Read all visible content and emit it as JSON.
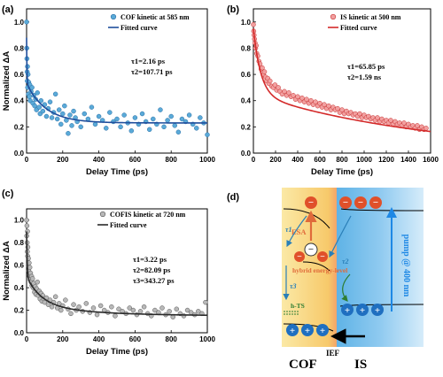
{
  "chart_data": [
    {
      "type": "scatter",
      "panel_label": "(a)",
      "xlabel": "Delay Time (ps)",
      "ylabel": "Normalized ΔA",
      "xlim": [
        0,
        1000
      ],
      "ylim": [
        0.0,
        1.1
      ],
      "xticks": [
        "0",
        "200",
        "400",
        "600",
        "800",
        "1000"
      ],
      "yticks": [
        "0.0",
        "0.2",
        "0.4",
        "0.6",
        "0.8",
        "1.0"
      ],
      "legend": {
        "placement": "top-right",
        "scatter_label": "COF kinetic at 585 nm",
        "fit_label": "Fitted curve"
      },
      "annotations": [
        "τ1=2.16 ps",
        "τ2=107.71 ps"
      ],
      "colors": {
        "points": "#5aaad8",
        "point_edge": "#2c6fa6",
        "fit": "#1f4e9c"
      },
      "fit": {
        "offset": 0.23,
        "components": [
          {
            "amp": 0.35,
            "tau": 2.16
          },
          {
            "amp": 0.3,
            "tau": 107.71
          }
        ]
      },
      "x": [
        0,
        1,
        2,
        3,
        4,
        5,
        6,
        8,
        10,
        12,
        15,
        18,
        20,
        25,
        30,
        35,
        40,
        45,
        50,
        55,
        60,
        70,
        75,
        80,
        90,
        100,
        110,
        120,
        130,
        140,
        150,
        160,
        170,
        180,
        190,
        200,
        210,
        220,
        230,
        240,
        250,
        260,
        270,
        280,
        300,
        320,
        340,
        360,
        380,
        400,
        420,
        440,
        460,
        480,
        500,
        520,
        540,
        560,
        580,
        600,
        620,
        640,
        660,
        680,
        700,
        720,
        740,
        760,
        780,
        800,
        820,
        840,
        860,
        880,
        900,
        920,
        940,
        960,
        980,
        1000
      ],
      "y": [
        1.0,
        0.8,
        0.72,
        0.62,
        0.55,
        0.66,
        0.5,
        0.6,
        0.45,
        0.54,
        0.43,
        0.52,
        0.4,
        0.47,
        0.5,
        0.38,
        0.44,
        0.36,
        0.41,
        0.33,
        0.46,
        0.35,
        0.3,
        0.4,
        0.32,
        0.37,
        0.28,
        0.34,
        0.39,
        0.27,
        0.31,
        0.45,
        0.26,
        0.33,
        0.22,
        0.3,
        0.36,
        0.25,
        0.15,
        0.29,
        0.21,
        0.32,
        0.27,
        0.24,
        0.2,
        0.3,
        0.26,
        0.35,
        0.22,
        0.28,
        0.25,
        0.19,
        0.31,
        0.24,
        0.26,
        0.2,
        0.29,
        0.23,
        0.17,
        0.27,
        0.22,
        0.3,
        0.24,
        0.18,
        0.26,
        0.22,
        0.33,
        0.2,
        0.25,
        0.28,
        0.21,
        0.16,
        0.26,
        0.24,
        0.29,
        0.22,
        0.19,
        0.27,
        0.23,
        0.14
      ]
    },
    {
      "type": "scatter",
      "panel_label": "(b)",
      "xlabel": "Delay Time (ps)",
      "ylabel": "",
      "xlim": [
        0,
        1600
      ],
      "ylim": [
        0.0,
        1.1
      ],
      "xticks": [
        "0",
        "200",
        "400",
        "600",
        "800",
        "1000",
        "1200",
        "1400",
        "1600"
      ],
      "yticks": [
        "0.0",
        "0.2",
        "0.4",
        "0.6",
        "0.8",
        "1.0"
      ],
      "legend": {
        "placement": "top-right",
        "scatter_label": "IS kinetic at 500 nm",
        "fit_label": "Fitted curve"
      },
      "annotations": [
        "τ1=65.85 ps",
        "τ2=1.59 ns"
      ],
      "colors": {
        "points": "#f2a0a0",
        "point_edge": "#c83232",
        "fit": "#d42a2a"
      },
      "fit": {
        "offset": 0.0,
        "components": [
          {
            "amp": 0.5,
            "tau": 65.85
          },
          {
            "amp": 0.45,
            "tau": 1590
          }
        ]
      },
      "x": [
        0,
        3,
        6,
        10,
        15,
        20,
        25,
        30,
        40,
        50,
        60,
        70,
        80,
        90,
        100,
        110,
        120,
        130,
        140,
        150,
        165,
        180,
        195,
        210,
        225,
        240,
        260,
        280,
        300,
        320,
        340,
        360,
        380,
        400,
        420,
        440,
        460,
        480,
        500,
        520,
        540,
        560,
        580,
        600,
        620,
        640,
        660,
        680,
        700,
        720,
        740,
        760,
        780,
        800,
        820,
        840,
        860,
        880,
        900,
        920,
        940,
        960,
        980,
        1000,
        1020,
        1040,
        1060,
        1080,
        1100,
        1120,
        1140,
        1160,
        1180,
        1200,
        1220,
        1240,
        1260,
        1280,
        1300,
        1320,
        1340,
        1360,
        1380,
        1400,
        1420,
        1440,
        1460,
        1480,
        1500,
        1520,
        1540,
        1560
      ],
      "y": [
        0.98,
        0.93,
        0.9,
        0.87,
        0.84,
        0.8,
        0.82,
        0.76,
        0.74,
        0.7,
        0.68,
        0.64,
        0.65,
        0.6,
        0.62,
        0.58,
        0.55,
        0.57,
        0.53,
        0.55,
        0.51,
        0.5,
        0.52,
        0.48,
        0.5,
        0.47,
        0.45,
        0.47,
        0.44,
        0.46,
        0.43,
        0.44,
        0.41,
        0.43,
        0.4,
        0.42,
        0.39,
        0.41,
        0.38,
        0.4,
        0.37,
        0.39,
        0.36,
        0.38,
        0.35,
        0.37,
        0.34,
        0.36,
        0.33,
        0.35,
        0.33,
        0.34,
        0.31,
        0.33,
        0.3,
        0.32,
        0.3,
        0.31,
        0.29,
        0.3,
        0.28,
        0.3,
        0.27,
        0.29,
        0.27,
        0.28,
        0.26,
        0.27,
        0.25,
        0.27,
        0.24,
        0.26,
        0.24,
        0.25,
        0.23,
        0.25,
        0.22,
        0.24,
        0.22,
        0.23,
        0.21,
        0.23,
        0.2,
        0.22,
        0.2,
        0.21,
        0.19,
        0.21,
        0.18,
        0.2,
        0.18,
        0.19
      ]
    },
    {
      "type": "scatter",
      "panel_label": "(c)",
      "xlabel": "Delay Time (ps)",
      "ylabel": "Normalized ΔA",
      "xlim": [
        0,
        1000
      ],
      "ylim": [
        0.0,
        1.1
      ],
      "xticks": [
        "0",
        "200",
        "400",
        "600",
        "800",
        "1000"
      ],
      "yticks": [
        "0.0",
        "0.2",
        "0.4",
        "0.6",
        "0.8",
        "1.0"
      ],
      "legend": {
        "placement": "top-right",
        "scatter_label": "COFIS kinetic at 720 nm",
        "fit_label": "Fitted curve"
      },
      "annotations": [
        "τ1=3.22 ps",
        "τ2=82.09 ps",
        "τ3=343.27 ps"
      ],
      "colors": {
        "points": "#b8b8b8",
        "point_edge": "#555555",
        "fit": "#2a2a2a"
      },
      "fit": {
        "offset": 0.15,
        "components": [
          {
            "amp": 0.4,
            "tau": 3.22
          },
          {
            "amp": 0.25,
            "tau": 82.09
          },
          {
            "amp": 0.1,
            "tau": 343.27
          }
        ]
      },
      "x": [
        0,
        1,
        2,
        3,
        4,
        5,
        6,
        7,
        8,
        10,
        12,
        14,
        16,
        18,
        20,
        22,
        25,
        28,
        30,
        33,
        36,
        40,
        44,
        48,
        52,
        56,
        60,
        65,
        70,
        75,
        80,
        85,
        90,
        95,
        100,
        110,
        120,
        130,
        140,
        150,
        160,
        170,
        180,
        190,
        200,
        215,
        230,
        245,
        260,
        275,
        290,
        310,
        330,
        350,
        370,
        390,
        410,
        430,
        450,
        470,
        490,
        510,
        530,
        550,
        570,
        590,
        610,
        630,
        650,
        670,
        690,
        710,
        730,
        750,
        770,
        790,
        810,
        830,
        850,
        870,
        890,
        910,
        930,
        950,
        970,
        990
      ],
      "y": [
        1.0,
        0.86,
        0.95,
        0.8,
        0.72,
        0.9,
        0.68,
        0.76,
        0.6,
        0.66,
        0.55,
        0.62,
        0.5,
        0.58,
        0.47,
        0.53,
        0.45,
        0.5,
        0.42,
        0.48,
        0.4,
        0.44,
        0.36,
        0.41,
        0.34,
        0.39,
        0.45,
        0.33,
        0.37,
        0.3,
        0.35,
        0.28,
        0.33,
        0.3,
        0.27,
        0.31,
        0.25,
        0.29,
        0.23,
        0.27,
        0.32,
        0.22,
        0.26,
        0.2,
        0.24,
        0.29,
        0.21,
        0.17,
        0.25,
        0.2,
        0.23,
        0.19,
        0.26,
        0.18,
        0.22,
        0.16,
        0.24,
        0.2,
        0.18,
        0.23,
        0.15,
        0.21,
        0.19,
        0.17,
        0.22,
        0.2,
        0.16,
        0.19,
        0.23,
        0.17,
        0.15,
        0.2,
        0.18,
        0.22,
        0.16,
        0.19,
        0.14,
        0.21,
        0.17,
        0.15,
        0.2,
        0.18,
        0.16,
        0.19,
        0.17,
        0.27
      ]
    }
  ],
  "diagram": {
    "panel_label": "(d)",
    "esa_label": "ESA",
    "tau1": "τ1",
    "tau2": "τ2",
    "tau3": "τ3",
    "hybrid_label": "hybrid energy-level",
    "hts_label": "h-TS",
    "pump_label": "pump @ 400 nm",
    "ief_label": "IEF",
    "cof_label": "COF",
    "is_label": "IS",
    "minus": "−",
    "plus": "+",
    "colors": {
      "cof_bg": "#f7d97a",
      "is_bg": "#4aa6dd",
      "electron": "#e0502a",
      "hole": "#1f6fc0",
      "band": "#1a237e",
      "pump": "#1e88e5",
      "esa": "#e06a3a",
      "hts": "#2e7d32"
    }
  }
}
